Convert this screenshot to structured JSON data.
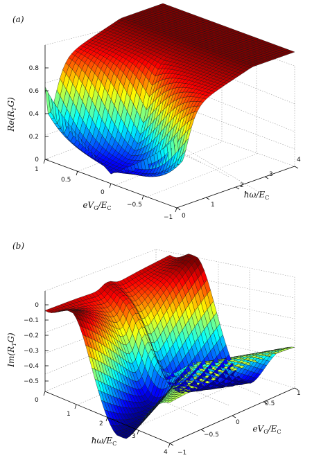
{
  "chart_data": [
    {
      "panel": "(a)",
      "type": "surface",
      "zlabel": "Re(R_T G)",
      "xlabel": "eV_G/E_C",
      "ylabel": "ħω/E_C",
      "z_ticks": [
        "0",
        "0.2",
        "0.4",
        "0.6",
        "0.8"
      ],
      "x_ticks": [
        "1",
        "0.5",
        "0",
        "−0.5",
        "−1"
      ],
      "y_ticks": [
        "0",
        "1",
        "2",
        "3",
        "4"
      ],
      "zlim": [
        0,
        0.8
      ],
      "xlim": [
        -1,
        1
      ],
      "ylim": [
        0,
        4
      ],
      "grid": true,
      "colormap": "jet"
    },
    {
      "panel": "(b)",
      "type": "surface",
      "zlabel": "Im(R_T G)",
      "xlabel": "ħω/E_C",
      "ylabel": "eV_G/E_C",
      "z_ticks": [
        "0",
        "−0.1",
        "−0.2",
        "−0.3",
        "−0.4",
        "−0.5"
      ],
      "x_ticks": [
        "0",
        "1",
        "2",
        "3",
        "4"
      ],
      "y_ticks": [
        "−1",
        "−0.5",
        "0",
        "0.5",
        "1"
      ],
      "zlim": [
        -0.55,
        0
      ],
      "xlim": [
        0,
        4
      ],
      "ylim": [
        -1,
        1
      ],
      "grid": true,
      "colormap": "jet"
    }
  ]
}
